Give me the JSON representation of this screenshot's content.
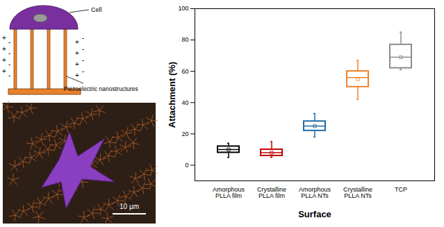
{
  "chart_data": {
    "type": "box",
    "x_label": "Surface",
    "y_label": "Attachment (%)",
    "categories": [
      "Amorphous PLLA film",
      "Crystalline PLLA film",
      "Amorphous PLLA NTs",
      "Crystalline PLLA NTs",
      "TCP"
    ],
    "whisker_low": [
      5,
      5,
      18,
      42,
      61
    ],
    "q1": [
      8,
      6,
      22,
      50,
      62
    ],
    "median": [
      10,
      8,
      25,
      56,
      69
    ],
    "q3": [
      12,
      10,
      28,
      60,
      77
    ],
    "whisker_high": [
      14,
      15,
      33,
      67,
      85
    ],
    "mean": [
      10,
      8,
      25,
      55,
      69
    ],
    "colors": [
      "#000000",
      "#c00000",
      "#1f6aa5",
      "#f0822a",
      "#8c8c8c"
    ],
    "ylim": [
      -10,
      100
    ],
    "yticks": [
      0,
      20,
      40,
      60,
      80,
      100
    ],
    "grid": false,
    "annotations": [
      "Cell",
      "Piezoelectric nanostructures",
      "10 µm",
      "+",
      "-"
    ]
  }
}
